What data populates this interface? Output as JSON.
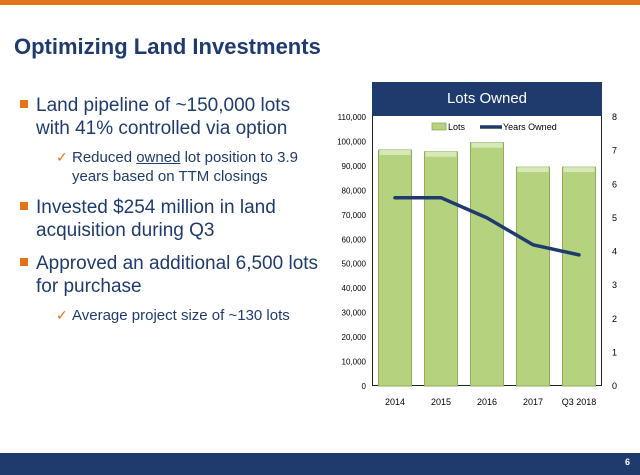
{
  "slide": {
    "title": "Optimizing Land Investments",
    "page_number": "6",
    "colors": {
      "accent": "#e2731b",
      "navy": "#1f3b6e"
    }
  },
  "bullets": [
    {
      "text": "Land pipeline of ~150,000 lots with 41% controlled via option"
    },
    {
      "pre": "Reduced ",
      "underlined": "owned",
      "post": " lot position to 3.9 years based on TTM closings"
    },
    {
      "text": "Invested $254 million in land acquisition during Q3"
    },
    {
      "text": "Approved an additional 6,500 lots for purchase"
    },
    {
      "text": "Average project size of ~130 lots"
    }
  ],
  "chart_data": {
    "type": "bar",
    "title": "Lots Owned",
    "categories": [
      "2014",
      "2015",
      "2016",
      "2017",
      "Q3 2018"
    ],
    "series": [
      {
        "name": "Lots",
        "type": "bar",
        "axis": "left",
        "values": [
          96500,
          95800,
          99500,
          89500,
          89500
        ],
        "color": "#b5d27e"
      },
      {
        "name": "Years Owned",
        "type": "line",
        "axis": "right",
        "values": [
          5.6,
          5.6,
          5.0,
          4.2,
          3.9
        ],
        "color": "#1f3b6e"
      }
    ],
    "ylim": [
      0,
      110000
    ],
    "y_ticks": [
      "0",
      "10,000",
      "20,000",
      "30,000",
      "40,000",
      "50,000",
      "60,000",
      "70,000",
      "80,000",
      "90,000",
      "100,000",
      "110,000"
    ],
    "y2lim": [
      0,
      8
    ],
    "y2_ticks": [
      "0",
      "1",
      "2",
      "3",
      "4",
      "5",
      "6",
      "7",
      "8"
    ],
    "legend": "top-center",
    "grid": false
  }
}
